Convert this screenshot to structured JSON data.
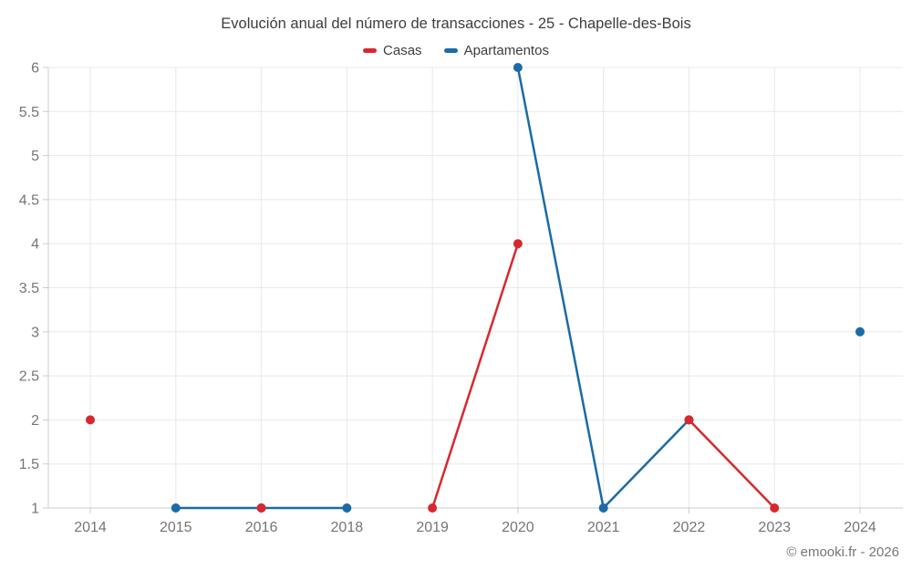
{
  "footer": "© emooki.fr - 2026",
  "chart_data": {
    "type": "line",
    "title": "Evolución anual del número de transacciones - 25 - Chapelle-des-Bois",
    "xlabel": "",
    "ylabel": "",
    "categories": [
      "2014",
      "2015",
      "2016",
      "2018",
      "2019",
      "2020",
      "2021",
      "2022",
      "2023",
      "2024"
    ],
    "series": [
      {
        "name": "Casas",
        "color": "#d7282f",
        "values": [
          2,
          null,
          1,
          null,
          1,
          4,
          null,
          2,
          1,
          null
        ]
      },
      {
        "name": "Apartamentos",
        "color": "#1b6ba5",
        "values": [
          null,
          1,
          1,
          1,
          null,
          6,
          1,
          2,
          null,
          3
        ]
      }
    ],
    "ylim": [
      1,
      6
    ],
    "ytick_step": 0.5,
    "ytick_labels": [
      "1",
      "1.5",
      "2",
      "2.5",
      "3",
      "3.5",
      "4",
      "4.5",
      "5",
      "5.5",
      "6"
    ],
    "grid": true,
    "legend_position": "top",
    "line_gaps_note": "missing years per series are gaps (no line)"
  }
}
